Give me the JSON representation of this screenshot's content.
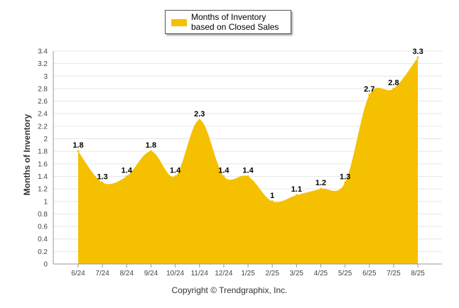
{
  "chart_data": {
    "type": "area",
    "categories": [
      "6/24",
      "7/24",
      "8/24",
      "9/24",
      "10/24",
      "11/24",
      "12/24",
      "1/25",
      "2/25",
      "3/25",
      "4/25",
      "5/25",
      "6/25",
      "7/25",
      "8/25"
    ],
    "series": [
      {
        "name": "Months of Inventory based on Closed Sales",
        "values": [
          1.8,
          1.3,
          1.4,
          1.8,
          1.4,
          2.3,
          1.4,
          1.4,
          1,
          1.1,
          1.2,
          1.3,
          2.7,
          2.8,
          3.3
        ],
        "labels": [
          "1.8",
          "1.3",
          "1.4",
          "1.8",
          "1.4",
          "2.3",
          "1.4",
          "1.4",
          "1",
          "1.1",
          "1.2",
          "1.3",
          "2.7",
          "2.8",
          "3.3"
        ]
      }
    ],
    "ylabel": "Months of Inventory",
    "ylim": [
      0,
      3.4
    ],
    "yticks": [
      "0",
      "0.2",
      "0.4",
      "0.6",
      "0.8",
      "1",
      "1.2",
      "1.4",
      "1.6",
      "1.8",
      "2",
      "2.2",
      "2.4",
      "2.6",
      "2.8",
      "3",
      "3.2",
      "3.4"
    ],
    "grid": true,
    "legend_position": "top-center",
    "colors": {
      "fill": "#F5C000",
      "grid": "#E6E6E6",
      "axis": "#999999"
    }
  },
  "legend": {
    "label": "Months of Inventory based on Closed Sales"
  },
  "footer": {
    "credit": "Copyright © Trendgraphix, Inc."
  }
}
